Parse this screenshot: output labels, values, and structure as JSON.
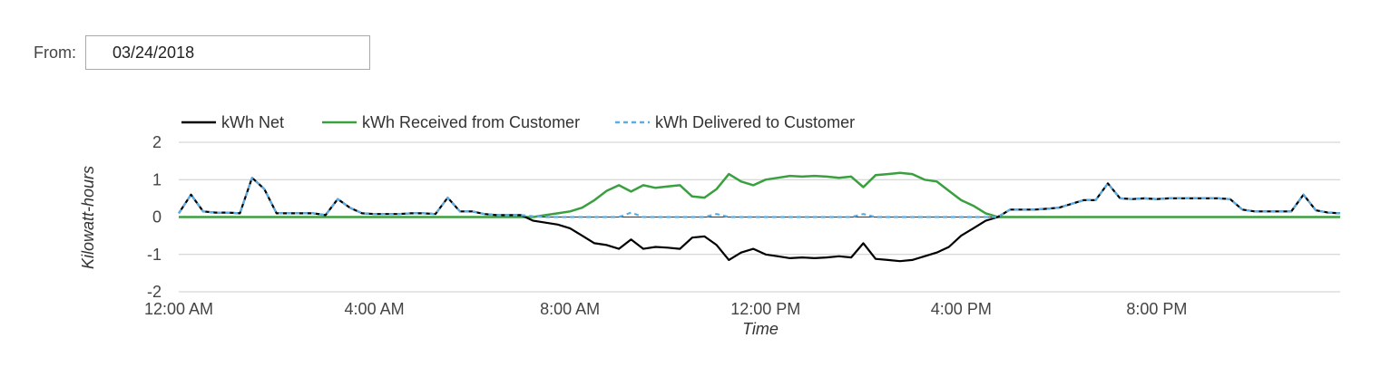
{
  "filter": {
    "from_label": "From:",
    "from_value": "03/24/2018"
  },
  "chart_data": {
    "type": "line",
    "title": "",
    "xlabel": "Time",
    "ylabel": "Kilowatt-hours",
    "ylim": [
      -2,
      2
    ],
    "xlim": [
      0,
      23.75
    ],
    "y_ticks": [
      "2",
      "1",
      "0",
      "-1",
      "-2"
    ],
    "x_ticks": [
      {
        "label": "12:00 AM",
        "hour": 0
      },
      {
        "label": "4:00 AM",
        "hour": 4
      },
      {
        "label": "8:00 AM",
        "hour": 8
      },
      {
        "label": "12:00 PM",
        "hour": 12
      },
      {
        "label": "4:00 PM",
        "hour": 16
      },
      {
        "label": "8:00 PM",
        "hour": 20
      }
    ],
    "grid": true,
    "legend_position": "top-left",
    "x_hours": [
      0,
      0.25,
      0.5,
      0.75,
      1,
      1.25,
      1.5,
      1.75,
      2,
      2.25,
      2.5,
      2.75,
      3,
      3.25,
      3.5,
      3.75,
      4,
      4.25,
      4.5,
      4.75,
      5,
      5.25,
      5.5,
      5.75,
      6,
      6.25,
      6.5,
      6.75,
      7,
      7.25,
      7.5,
      7.75,
      8,
      8.25,
      8.5,
      8.75,
      9,
      9.25,
      9.5,
      9.75,
      10,
      10.25,
      10.5,
      10.75,
      11,
      11.25,
      11.5,
      11.75,
      12,
      12.25,
      12.5,
      12.75,
      13,
      13.25,
      13.5,
      13.75,
      14,
      14.25,
      14.5,
      14.75,
      15,
      15.25,
      15.5,
      15.75,
      16,
      16.25,
      16.5,
      16.75,
      17,
      17.25,
      17.5,
      17.75,
      18,
      18.25,
      18.5,
      18.75,
      19,
      19.25,
      19.5,
      19.75,
      20,
      20.25,
      20.5,
      20.75,
      21,
      21.25,
      21.5,
      21.75,
      22,
      22.25,
      22.5,
      22.75,
      23,
      23.25,
      23.5,
      23.75
    ],
    "series": [
      {
        "name": "kWh Net",
        "color": "#000000",
        "dash": "solid",
        "values": [
          0.1,
          0.6,
          0.15,
          0.12,
          0.12,
          0.1,
          1.05,
          0.75,
          0.1,
          0.1,
          0.1,
          0.1,
          0.05,
          0.48,
          0.25,
          0.1,
          0.08,
          0.08,
          0.08,
          0.1,
          0.1,
          0.08,
          0.52,
          0.15,
          0.15,
          0.08,
          0.05,
          0.05,
          0.05,
          -0.1,
          -0.15,
          -0.2,
          -0.3,
          -0.5,
          -0.7,
          -0.75,
          -0.85,
          -0.6,
          -0.85,
          -0.8,
          -0.82,
          -0.85,
          -0.55,
          -0.52,
          -0.75,
          -1.15,
          -0.95,
          -0.85,
          -1.0,
          -1.05,
          -1.1,
          -1.08,
          -1.1,
          -1.08,
          -1.05,
          -1.08,
          -0.7,
          -1.12,
          -1.15,
          -1.18,
          -1.15,
          -1.05,
          -0.95,
          -0.8,
          -0.5,
          -0.3,
          -0.1,
          0.0,
          0.2,
          0.2,
          0.2,
          0.22,
          0.25,
          0.35,
          0.45,
          0.45,
          0.9,
          0.5,
          0.48,
          0.5,
          0.48,
          0.5,
          0.5,
          0.5,
          0.5,
          0.5,
          0.48,
          0.2,
          0.15,
          0.15,
          0.15,
          0.15,
          0.6,
          0.18,
          0.12,
          0.1
        ]
      },
      {
        "name": "kWh Received from Customer",
        "color": "#3aa03f",
        "dash": "solid",
        "values": [
          0,
          0,
          0,
          0,
          0,
          0,
          0,
          0,
          0,
          0,
          0,
          0,
          0,
          0,
          0,
          0,
          0,
          0,
          0,
          0,
          0,
          0,
          0,
          0,
          0,
          0,
          0,
          0,
          0,
          0,
          0.05,
          0.1,
          0.15,
          0.25,
          0.45,
          0.7,
          0.85,
          0.68,
          0.85,
          0.78,
          0.82,
          0.85,
          0.55,
          0.52,
          0.75,
          1.15,
          0.95,
          0.85,
          1.0,
          1.05,
          1.1,
          1.08,
          1.1,
          1.08,
          1.05,
          1.08,
          0.8,
          1.12,
          1.15,
          1.18,
          1.15,
          1.0,
          0.95,
          0.7,
          0.45,
          0.3,
          0.1,
          0.0,
          0,
          0,
          0,
          0,
          0,
          0,
          0,
          0,
          0,
          0,
          0,
          0,
          0,
          0,
          0,
          0,
          0,
          0,
          0,
          0,
          0,
          0,
          0,
          0,
          0,
          0,
          0,
          0
        ]
      },
      {
        "name": "kWh Delivered to Customer",
        "color": "#5aaee8",
        "dash": "dashed",
        "values": [
          0.1,
          0.6,
          0.15,
          0.12,
          0.12,
          0.1,
          1.05,
          0.75,
          0.1,
          0.1,
          0.1,
          0.1,
          0.05,
          0.48,
          0.25,
          0.1,
          0.08,
          0.08,
          0.08,
          0.1,
          0.1,
          0.08,
          0.52,
          0.15,
          0.15,
          0.08,
          0.05,
          0.05,
          0.05,
          0.02,
          0,
          0,
          0,
          0,
          0,
          0,
          0,
          0.12,
          0,
          0,
          0,
          0,
          0,
          0,
          0.08,
          0,
          0,
          0,
          0,
          0,
          0,
          0,
          0,
          0,
          0,
          0,
          0.08,
          0,
          0,
          0,
          0,
          0,
          0,
          0,
          0,
          0,
          0,
          0.0,
          0.2,
          0.2,
          0.2,
          0.22,
          0.25,
          0.35,
          0.45,
          0.45,
          0.9,
          0.5,
          0.48,
          0.5,
          0.48,
          0.5,
          0.5,
          0.5,
          0.5,
          0.5,
          0.48,
          0.2,
          0.15,
          0.15,
          0.15,
          0.15,
          0.6,
          0.18,
          0.12,
          0.1
        ]
      }
    ]
  }
}
